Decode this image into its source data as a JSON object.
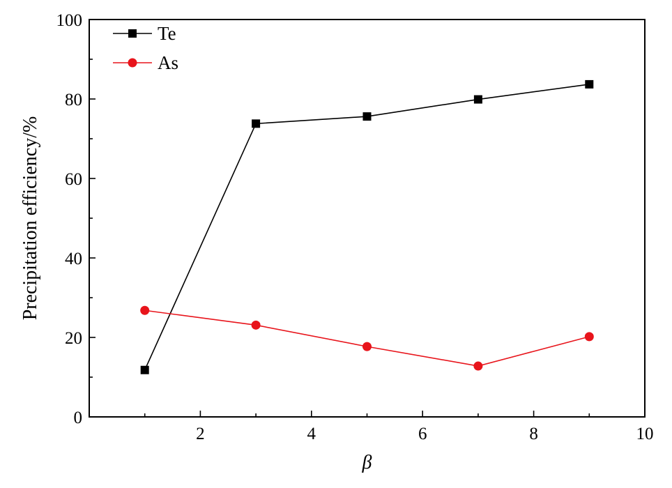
{
  "chart_data": {
    "type": "line",
    "xlabel": "β",
    "ylabel": "Precipitation efficiency/%",
    "xlim": [
      0,
      10
    ],
    "ylim": [
      0,
      100
    ],
    "xticks": [
      2,
      4,
      6,
      8,
      10
    ],
    "yticks": [
      0,
      20,
      40,
      60,
      80,
      100
    ],
    "x": [
      1,
      3,
      5,
      7,
      9
    ],
    "series": [
      {
        "name": "Te",
        "values": [
          11.8,
          73.8,
          75.6,
          79.9,
          83.7
        ],
        "color": "#000000",
        "marker": "square"
      },
      {
        "name": "As",
        "values": [
          26.8,
          23.1,
          17.7,
          12.8,
          20.2
        ],
        "color": "#e8141b",
        "marker": "circle"
      }
    ],
    "legend_position": "top-left",
    "grid": false
  }
}
